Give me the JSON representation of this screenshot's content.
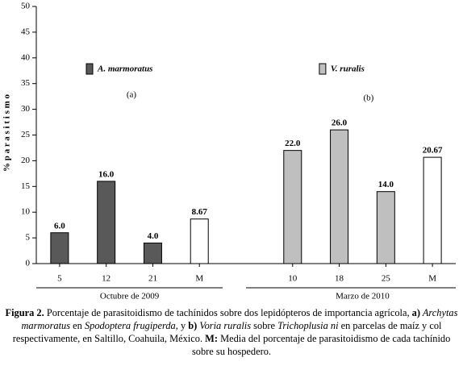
{
  "chart_data": {
    "type": "bar",
    "y_label": "% p a r a s i t i s m o",
    "ylim": [
      0,
      50
    ],
    "yticks": [
      0,
      5,
      10,
      15,
      20,
      25,
      30,
      35,
      40,
      45,
      50
    ],
    "groups": [
      {
        "label": "Octubre de 2009",
        "annotation": "(a)",
        "legend": {
          "name": "A. marmoratus",
          "color": "#595959"
        },
        "categories": [
          "5",
          "12",
          "21",
          "M"
        ],
        "values": [
          6.0,
          16.0,
          4.0,
          8.67
        ],
        "value_labels": [
          "6.0",
          "16.0",
          "4.0",
          "8.67"
        ],
        "colors": [
          "#595959",
          "#595959",
          "#595959",
          "#ffffff"
        ]
      },
      {
        "label": "Marzo de 2010",
        "annotation": "(b)",
        "legend": {
          "name": "V. ruralis",
          "color": "#bfbfbf"
        },
        "categories": [
          "10",
          "18",
          "25",
          "M"
        ],
        "values": [
          22.0,
          26.0,
          14.0,
          20.67
        ],
        "value_labels": [
          "22.0",
          "26.0",
          "14.0",
          "20.67"
        ],
        "colors": [
          "#bfbfbf",
          "#bfbfbf",
          "#bfbfbf",
          "#ffffff"
        ]
      }
    ]
  },
  "caption": [
    {
      "text": "Figura 2.",
      "style": "b"
    },
    {
      "text": " Porcentaje de parasitoidismo de tachínidos sobre dos lepidópteros de importancia agrícola, ",
      "style": ""
    },
    {
      "text": "a)",
      "style": "b"
    },
    {
      "text": " Archytas marmoratus",
      "style": "i"
    },
    {
      "text": " en ",
      "style": ""
    },
    {
      "text": "Spodoptera frugiperda",
      "style": "i"
    },
    {
      "text": ", y ",
      "style": ""
    },
    {
      "text": "b)",
      "style": "b"
    },
    {
      "text": " Voria ruralis",
      "style": "i"
    },
    {
      "text": " sobre ",
      "style": ""
    },
    {
      "text": "Trichoplusia ni",
      "style": "i"
    },
    {
      "text": " en parcelas de maíz y col respectivamente, en Saltillo, Coahuila, México. ",
      "style": ""
    },
    {
      "text": "M:",
      "style": "b"
    },
    {
      "text": " Media del porcentaje de parasitoidismo de cada tachínido sobre su hospedero.",
      "style": ""
    }
  ]
}
